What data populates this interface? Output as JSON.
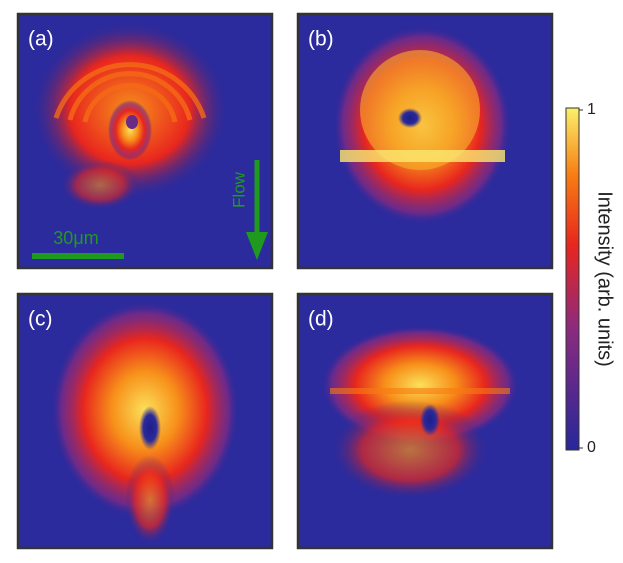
{
  "panels": [
    {
      "label": "(a)"
    },
    {
      "label": "(b)"
    },
    {
      "label": "(c)"
    },
    {
      "label": "(d)"
    }
  ],
  "scale_bar": "30μm",
  "flow_label": "Flow",
  "colorbar": {
    "label": "Intensity (arb. units)",
    "lim": [
      0,
      1
    ],
    "ticks": [
      0,
      1
    ]
  }
}
